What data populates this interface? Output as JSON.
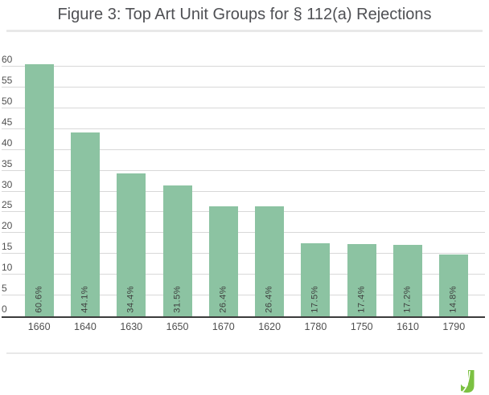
{
  "chart_data": {
    "type": "bar",
    "title": "Figure 3: Top Art Unit Groups for § 112(a) Rejections",
    "categories": [
      "1660",
      "1640",
      "1630",
      "1650",
      "1670",
      "1620",
      "1780",
      "1750",
      "1610",
      "1790"
    ],
    "values": [
      60.6,
      44.1,
      34.4,
      31.5,
      26.4,
      26.4,
      17.5,
      17.4,
      17.2,
      14.8
    ],
    "bar_labels": [
      "60.6%",
      "44.1%",
      "34.4%",
      "31.5%",
      "26.4%",
      "26.4%",
      "17.5%",
      "17.4%",
      "17.2%",
      "14.8%"
    ],
    "xlabel": "",
    "ylabel": "",
    "ylim": [
      0,
      60
    ],
    "yticks": [
      0,
      5,
      10,
      15,
      20,
      25,
      30,
      35,
      40,
      45,
      50,
      55,
      60
    ],
    "grid": true,
    "legend": false
  },
  "colors": {
    "background": "#ffffff",
    "title_text": "#4f5054",
    "divider": "#e8e8e8",
    "gridline": "#d8d8d8",
    "axis_line": "#3b3b3b",
    "tick_text": "#4f4f4f",
    "bar": "#8cc3a2",
    "bar_label_text": "#3d3d3d",
    "logo_green": "#7cc142",
    "logo_swoosh": "#ffffff"
  },
  "footer": {
    "logo_icon": "juristat-j-logo"
  }
}
